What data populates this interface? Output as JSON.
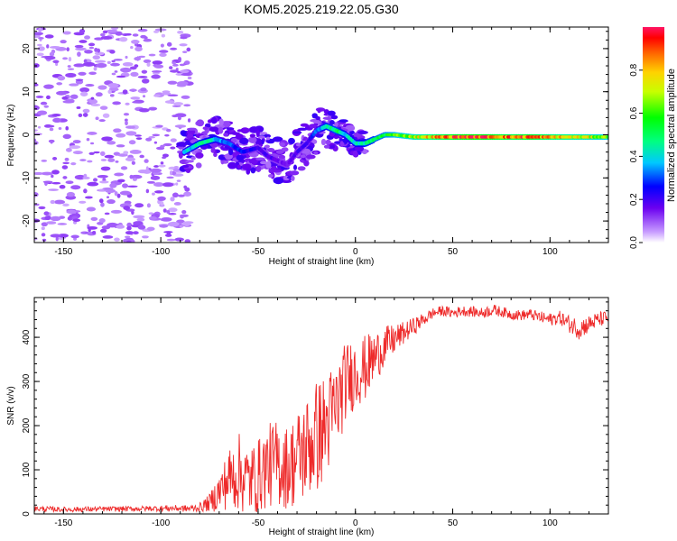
{
  "title": "KOM5.2025.219.22.05.G30",
  "chart_data": [
    {
      "type": "heatmap",
      "title": "KOM5.2025.219.22.05.G30",
      "xlabel": "Height of straight line (km)",
      "ylabel": "Frequency (Hz)",
      "xlim": [
        -165,
        130
      ],
      "ylim": [
        -25,
        25
      ],
      "xticks": [
        -150,
        -100,
        -50,
        0,
        50,
        100
      ],
      "yticks": [
        -20,
        -10,
        0,
        10,
        20
      ],
      "colorbar": {
        "label": "Normalized spectral amplitude",
        "range": [
          0,
          1
        ],
        "ticks": [
          0.0,
          0.2,
          0.4,
          0.6,
          0.8
        ]
      },
      "ridge": {
        "x": [
          -88,
          -80,
          -72,
          -65,
          -58,
          -50,
          -45,
          -40,
          -35,
          -30,
          -25,
          -20,
          -15,
          -10,
          -5,
          0,
          5,
          10,
          15,
          20,
          30,
          40,
          50,
          60,
          70,
          80,
          90,
          100,
          110,
          120,
          128
        ],
        "y": [
          -4,
          -2,
          -1,
          -2,
          -4,
          -3,
          -5,
          -6,
          -7,
          -4,
          -2,
          1,
          2,
          1,
          0,
          -2,
          -2,
          -1,
          0,
          0,
          -0.5,
          -0.5,
          -0.5,
          -0.5,
          -0.5,
          -0.5,
          -0.5,
          -0.5,
          -0.5,
          -0.5,
          -0.5
        ],
        "amplitude": [
          0.35,
          0.45,
          0.4,
          0.3,
          0.25,
          0.2,
          0.2,
          0.15,
          0.15,
          0.18,
          0.2,
          0.3,
          0.45,
          0.5,
          0.4,
          0.4,
          0.45,
          0.5,
          0.55,
          0.6,
          0.7,
          0.8,
          0.9,
          0.95,
          0.92,
          0.85,
          0.9,
          0.8,
          0.75,
          0.7,
          0.65
        ]
      },
      "grid": false
    },
    {
      "type": "line",
      "xlabel": "Height of straight line (km)",
      "ylabel": "SNR (v/v)",
      "xlim": [
        -165,
        130
      ],
      "ylim": [
        0,
        490
      ],
      "xticks": [
        -150,
        -100,
        -50,
        0,
        50,
        100
      ],
      "yticks": [
        0,
        100,
        200,
        300,
        400
      ],
      "color": "#ee2a2a",
      "series": [
        {
          "x": [
            -165,
            -150,
            -130,
            -110,
            -95,
            -85,
            -80,
            -75,
            -70,
            -65,
            -60,
            -55,
            -50,
            -45,
            -40,
            -35,
            -30,
            -25,
            -20,
            -15,
            -10,
            -5,
            0,
            5,
            10,
            15,
            20,
            25,
            30,
            35,
            40,
            45,
            50,
            55,
            60,
            65,
            70,
            75,
            80,
            85,
            90,
            95,
            100,
            105,
            110,
            115,
            120,
            125,
            130
          ],
          "y": [
            12,
            10,
            11,
            12,
            13,
            12,
            15,
            25,
            50,
            80,
            95,
            75,
            85,
            110,
            115,
            105,
            125,
            150,
            175,
            200,
            240,
            300,
            320,
            330,
            355,
            380,
            395,
            410,
            425,
            440,
            455,
            460,
            455,
            460,
            458,
            455,
            462,
            458,
            452,
            450,
            452,
            445,
            440,
            445,
            430,
            420,
            430,
            440,
            445
          ],
          "spread": [
            6,
            6,
            6,
            6,
            7,
            8,
            10,
            20,
            45,
            70,
            90,
            80,
            85,
            95,
            100,
            95,
            110,
            120,
            130,
            120,
            110,
            90,
            80,
            75,
            60,
            45,
            35,
            25,
            20,
            15,
            12,
            12,
            12,
            12,
            12,
            12,
            14,
            12,
            12,
            12,
            12,
            14,
            15,
            15,
            20,
            25,
            20,
            18,
            15
          ]
        }
      ],
      "grid": false
    }
  ]
}
